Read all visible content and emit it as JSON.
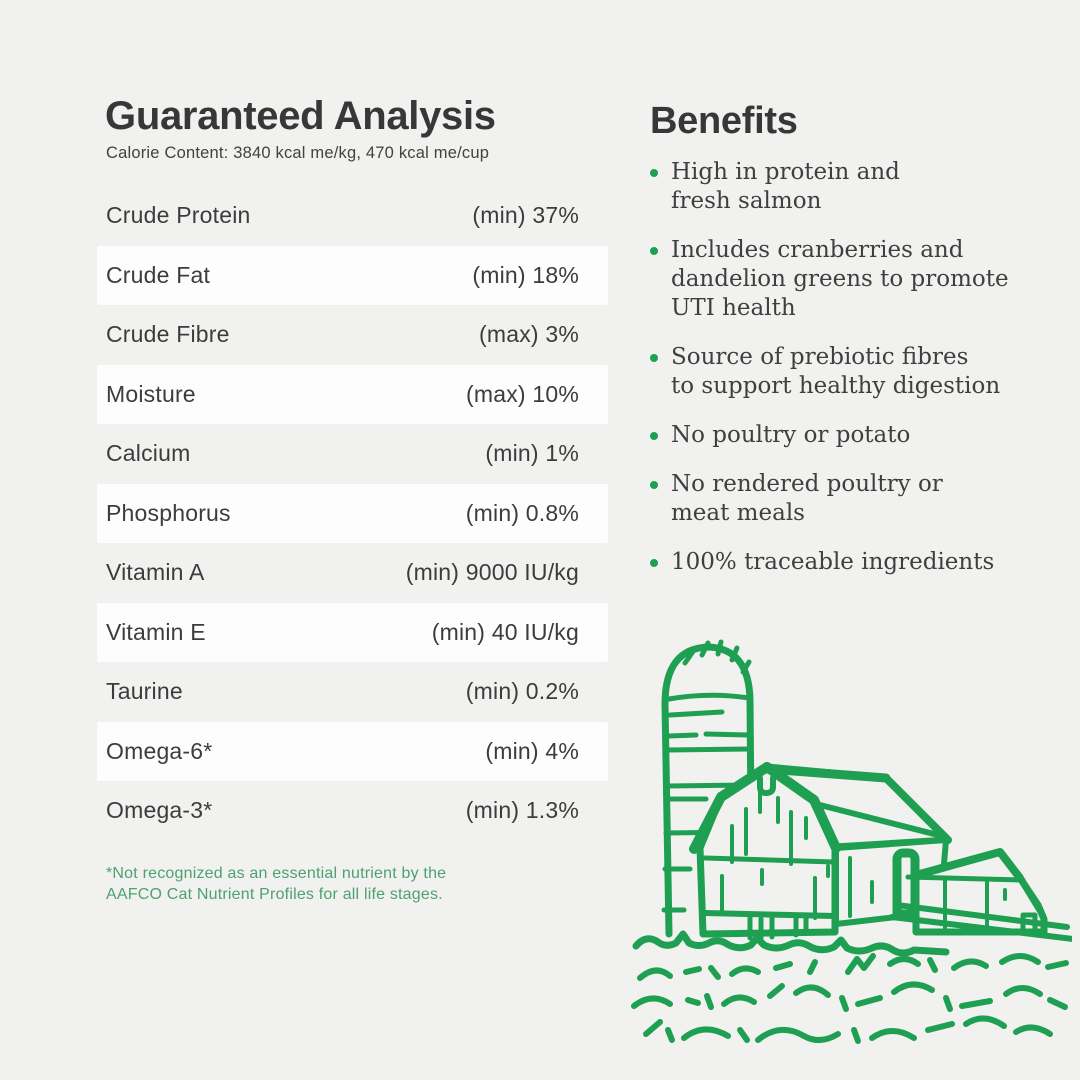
{
  "analysis": {
    "title": "Guaranteed Analysis",
    "subtitle": "Calorie Content: 3840 kcal me/kg, 470 kcal me/cup",
    "rows": [
      {
        "label": "Crude Protein",
        "value": "(min) 37%"
      },
      {
        "label": "Crude Fat",
        "value": "(min) 18%"
      },
      {
        "label": "Crude Fibre",
        "value": "(max) 3%"
      },
      {
        "label": "Moisture",
        "value": "(max) 10%"
      },
      {
        "label": "Calcium",
        "value": "(min) 1%"
      },
      {
        "label": "Phosphorus",
        "value": "(min) 0.8%"
      },
      {
        "label": "Vitamin A",
        "value": "(min) 9000 IU/kg"
      },
      {
        "label": "Vitamin E",
        "value": "(min) 40 IU/kg"
      },
      {
        "label": "Taurine",
        "value": "(min) 0.2%"
      },
      {
        "label": "Omega-6*",
        "value": "(min) 4%"
      },
      {
        "label": "Omega-3*",
        "value": "(min) 1.3%"
      }
    ],
    "footnote": "*Not recognized as an essential nutrient by the\nAAFCO Cat Nutrient Profiles for all life stages."
  },
  "benefits": {
    "title": "Benefits",
    "items": [
      "High in protein and\nfresh salmon",
      "Includes cranberries and\ndandelion greens to promote\nUTI health",
      "Source of prebiotic fibres\nto support healthy digestion",
      "No poultry or potato",
      "No rendered poultry or\nmeat meals",
      "100% traceable ingredients"
    ]
  },
  "illustration": {
    "name": "farm-barn-silo-line-art"
  },
  "colors": {
    "background": "#f1f1ef",
    "row_stripe": "#fdfdfd",
    "text_dark": "#3c3c3c",
    "green": "#1f9f51",
    "footnote_green": "#4da171"
  }
}
